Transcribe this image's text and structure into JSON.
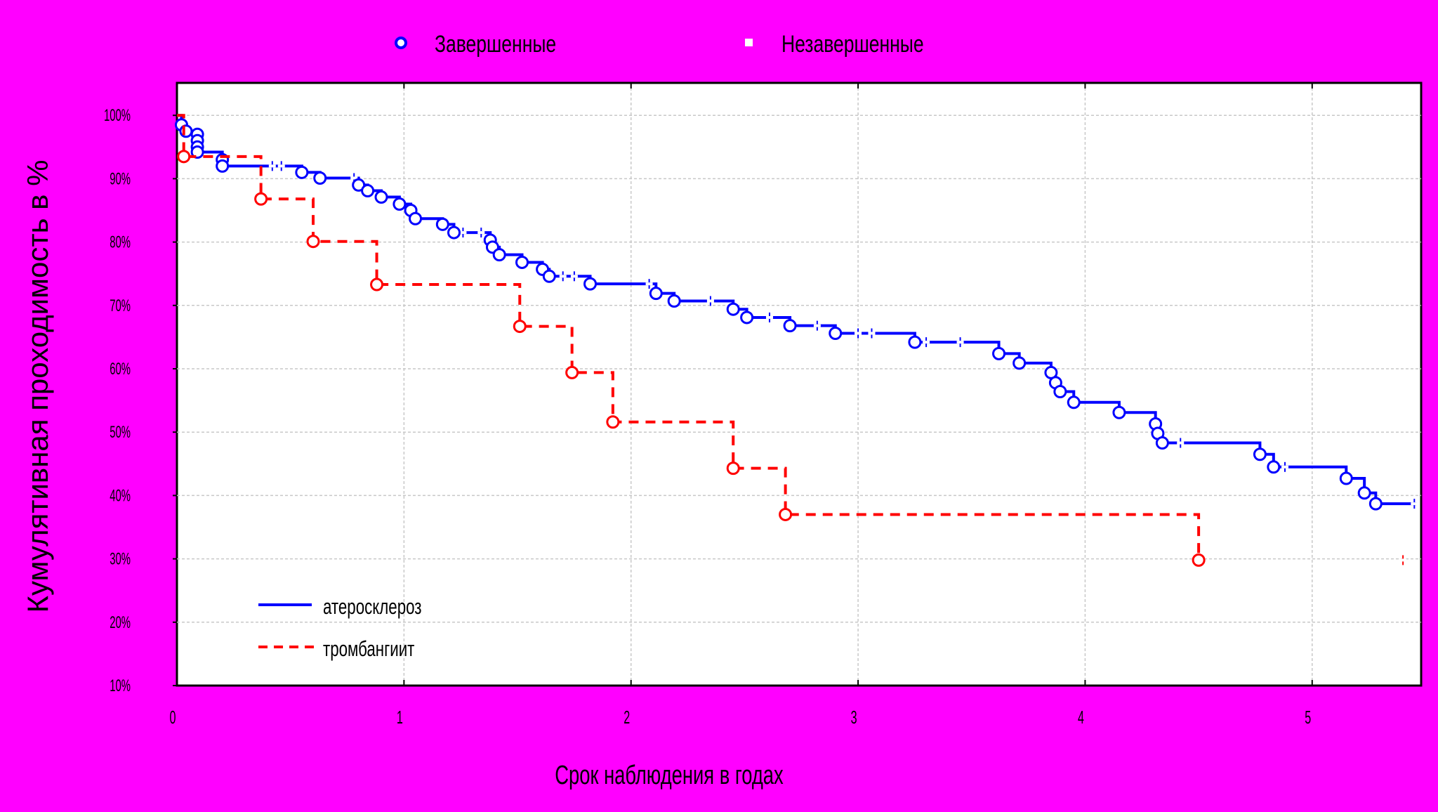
{
  "colors": {
    "background": "#ff00ff",
    "plot_area": "#ffffff",
    "grid": "#c8c8c8",
    "axis": "#000000",
    "series_athero": "#0000ff",
    "series_thrombo": "#ff0000"
  },
  "top_legend": {
    "completed_label": "Завершенные",
    "censored_label": "Незавершенные",
    "completed_marker": "open-circle-icon",
    "censored_marker": "square-icon"
  },
  "chart_data": {
    "type": "line",
    "step": "post",
    "ylabel": "Кумулятивная проходимость в %",
    "xlabel": "Срок наблюдения в годах",
    "xlim": [
      0,
      5.48
    ],
    "ylim": [
      10,
      105
    ],
    "x_ticks": [
      0,
      1,
      2,
      3,
      4,
      5
    ],
    "x_tick_labels": [
      "0",
      "1",
      "2",
      "3",
      "4",
      "5"
    ],
    "y_ticks": [
      10,
      20,
      30,
      40,
      50,
      60,
      70,
      80,
      90,
      100
    ],
    "y_tick_labels": [
      "10%",
      "20%",
      "30%",
      "40%",
      "50%",
      "60%",
      "70%",
      "80%",
      "90%",
      "100%"
    ],
    "grid": true,
    "legend_position": "bottom-left",
    "series": [
      {
        "name": "атеросклероз",
        "color": "#0000ff",
        "dash": "solid",
        "steps": [
          [
            0.0,
            100
          ],
          [
            0.02,
            98.5
          ],
          [
            0.04,
            97.5
          ],
          [
            0.09,
            97
          ],
          [
            0.09,
            96
          ],
          [
            0.09,
            95
          ],
          [
            0.09,
            94.2
          ],
          [
            0.2,
            93
          ],
          [
            0.2,
            92
          ],
          [
            0.55,
            91
          ],
          [
            0.63,
            90.1
          ],
          [
            0.8,
            89
          ],
          [
            0.84,
            88.1
          ],
          [
            0.9,
            87.1
          ],
          [
            0.98,
            86
          ],
          [
            1.03,
            85
          ],
          [
            1.05,
            83.7
          ],
          [
            1.17,
            82.8
          ],
          [
            1.22,
            81.5
          ],
          [
            1.38,
            80.3
          ],
          [
            1.39,
            79.2
          ],
          [
            1.42,
            78
          ],
          [
            1.52,
            76.8
          ],
          [
            1.61,
            75.7
          ],
          [
            1.64,
            74.6
          ],
          [
            1.82,
            73.4
          ],
          [
            2.11,
            71.9
          ],
          [
            2.19,
            70.7
          ],
          [
            2.45,
            69.4
          ],
          [
            2.51,
            68.1
          ],
          [
            2.7,
            66.8
          ],
          [
            2.9,
            65.6
          ],
          [
            3.25,
            64.2
          ],
          [
            3.62,
            62.4
          ],
          [
            3.71,
            60.9
          ],
          [
            3.85,
            59.4
          ],
          [
            3.87,
            57.8
          ],
          [
            3.89,
            56.4
          ],
          [
            3.95,
            54.7
          ],
          [
            4.15,
            53.1
          ],
          [
            4.31,
            51.3
          ],
          [
            4.32,
            49.8
          ],
          [
            4.34,
            48.3
          ],
          [
            4.77,
            46.5
          ],
          [
            4.83,
            44.5
          ],
          [
            5.15,
            42.7
          ],
          [
            5.23,
            40.4
          ],
          [
            5.28,
            38.7
          ]
        ],
        "end_x": 5.46,
        "events": [
          [
            0.02,
            98.5
          ],
          [
            0.04,
            97.5
          ],
          [
            0.09,
            97
          ],
          [
            0.09,
            96
          ],
          [
            0.09,
            95
          ],
          [
            0.09,
            94.2
          ],
          [
            0.2,
            93
          ],
          [
            0.2,
            92
          ],
          [
            0.55,
            91
          ],
          [
            0.63,
            90.1
          ],
          [
            0.8,
            89
          ],
          [
            0.84,
            88.1
          ],
          [
            0.9,
            87.1
          ],
          [
            0.98,
            86
          ],
          [
            1.03,
            85
          ],
          [
            1.05,
            83.7
          ],
          [
            1.17,
            82.8
          ],
          [
            1.22,
            81.5
          ],
          [
            1.38,
            80.3
          ],
          [
            1.39,
            79.2
          ],
          [
            1.42,
            78
          ],
          [
            1.52,
            76.8
          ],
          [
            1.61,
            75.7
          ],
          [
            1.64,
            74.6
          ],
          [
            1.82,
            73.4
          ],
          [
            2.11,
            71.9
          ],
          [
            2.19,
            70.7
          ],
          [
            2.45,
            69.4
          ],
          [
            2.51,
            68.1
          ],
          [
            2.7,
            66.8
          ],
          [
            2.9,
            65.6
          ],
          [
            3.25,
            64.2
          ],
          [
            3.62,
            62.4
          ],
          [
            3.71,
            60.9
          ],
          [
            3.85,
            59.4
          ],
          [
            3.87,
            57.8
          ],
          [
            3.89,
            56.4
          ],
          [
            3.95,
            54.7
          ],
          [
            4.15,
            53.1
          ],
          [
            4.31,
            51.3
          ],
          [
            4.32,
            49.8
          ],
          [
            4.34,
            48.3
          ],
          [
            4.77,
            46.5
          ],
          [
            4.83,
            44.5
          ],
          [
            5.15,
            42.7
          ],
          [
            5.23,
            40.4
          ],
          [
            5.28,
            38.7
          ]
        ],
        "censored": [
          [
            0.42,
            92
          ],
          [
            0.46,
            92
          ],
          [
            0.78,
            90.1
          ],
          [
            1.26,
            81.5
          ],
          [
            1.34,
            81.5
          ],
          [
            1.7,
            74.6
          ],
          [
            1.75,
            74.6
          ],
          [
            2.08,
            73.4
          ],
          [
            2.35,
            70.7
          ],
          [
            2.61,
            68.1
          ],
          [
            2.82,
            66.8
          ],
          [
            3.0,
            65.6
          ],
          [
            3.06,
            65.6
          ],
          [
            3.3,
            64.2
          ],
          [
            3.45,
            64.2
          ],
          [
            4.42,
            48.3
          ],
          [
            4.88,
            44.5
          ],
          [
            5.45,
            38.7
          ]
        ]
      },
      {
        "name": "тромбангиит",
        "color": "#ff0000",
        "dash": "dashed",
        "steps": [
          [
            0.0,
            100
          ],
          [
            0.03,
            93.5
          ],
          [
            0.37,
            86.8
          ],
          [
            0.6,
            80.1
          ],
          [
            0.88,
            73.3
          ],
          [
            1.51,
            66.7
          ],
          [
            1.74,
            59.4
          ],
          [
            1.92,
            51.6
          ],
          [
            2.45,
            44.3
          ],
          [
            2.68,
            37
          ],
          [
            4.5,
            29.8
          ]
        ],
        "end_x": 4.51,
        "events": [
          [
            0.03,
            93.5
          ],
          [
            0.37,
            86.8
          ],
          [
            0.6,
            80.1
          ],
          [
            0.88,
            73.3
          ],
          [
            1.51,
            66.7
          ],
          [
            1.74,
            59.4
          ],
          [
            1.92,
            51.6
          ],
          [
            2.45,
            44.3
          ],
          [
            2.68,
            37
          ],
          [
            4.5,
            29.8
          ]
        ],
        "censored": [
          [
            5.4,
            29.8
          ]
        ]
      }
    ]
  }
}
